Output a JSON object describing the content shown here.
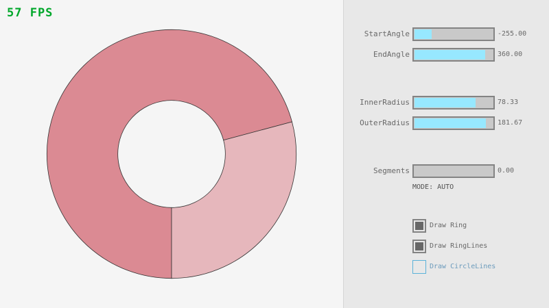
{
  "fps": "57 FPS",
  "ring": {
    "start_angle": -255,
    "end_angle": 360,
    "inner_radius": 78.33,
    "outer_radius": 181.67,
    "colors": {
      "overlap": "#db8a93",
      "single": "#e6b7bc",
      "outline": "#333333"
    }
  },
  "controls": {
    "sliders": [
      {
        "label": "StartAngle",
        "value": "-255.00",
        "min": -450,
        "max": 450,
        "number": -255
      },
      {
        "label": "EndAngle",
        "value": "360.00",
        "min": -450,
        "max": 450,
        "number": 360
      },
      {
        "label": "InnerRadius",
        "value": "78.33",
        "min": 0,
        "max": 100,
        "number": 78.33
      },
      {
        "label": "OuterRadius",
        "value": "181.67",
        "min": 0,
        "max": 200,
        "number": 181.67
      },
      {
        "label": "Segments",
        "value": "0.00",
        "min": 0,
        "max": 100,
        "number": 0
      }
    ],
    "mode": "MODE: AUTO",
    "checkboxes": [
      {
        "label": "Draw Ring",
        "checked": true
      },
      {
        "label": "Draw RingLines",
        "checked": true
      },
      {
        "label": "Draw CircleLines",
        "checked": false,
        "focused": true
      }
    ],
    "accent": "#97e8ff"
  }
}
